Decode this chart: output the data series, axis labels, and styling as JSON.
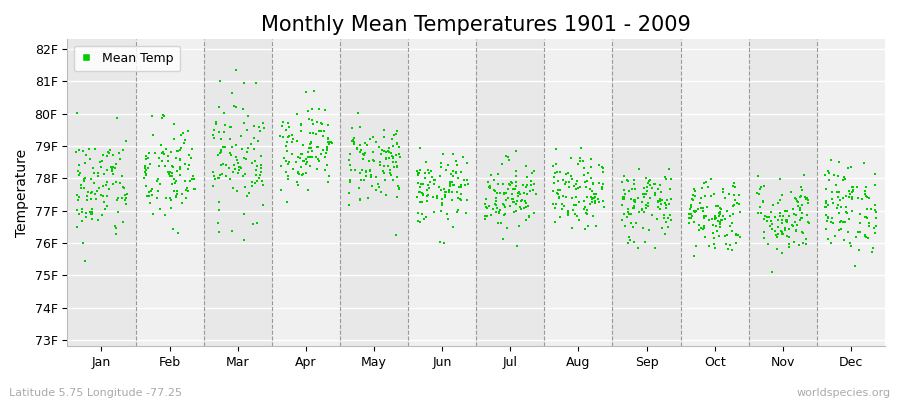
{
  "title": "Monthly Mean Temperatures 1901 - 2009",
  "ylabel": "Temperature",
  "xlabel_labels": [
    "Jan",
    "Feb",
    "Mar",
    "Apr",
    "May",
    "Jun",
    "Jul",
    "Aug",
    "Sep",
    "Oct",
    "Nov",
    "Dec"
  ],
  "ytick_labels": [
    "73F",
    "74F",
    "75F",
    "76F",
    "77F",
    "78F",
    "79F",
    "80F",
    "81F",
    "82F"
  ],
  "ytick_values": [
    73,
    74,
    75,
    76,
    77,
    78,
    79,
    80,
    81,
    82
  ],
  "ylim": [
    72.8,
    82.3
  ],
  "xlim": [
    -0.5,
    11.5
  ],
  "dot_color": "#00cc00",
  "bg_color": "#e8e8e8",
  "stripe_color": "#f0f0f0",
  "fig_color": "#ffffff",
  "grid_color": "#ffffff",
  "dashed_color": "#999999",
  "legend_label": "Mean Temp",
  "footer_left": "Latitude 5.75 Longitude -77.25",
  "footer_right": "worldspecies.org",
  "title_fontsize": 15,
  "axis_label_fontsize": 10,
  "tick_fontsize": 9,
  "footer_fontsize": 8,
  "seed": 42,
  "n_years": 109,
  "monthly_means": [
    77.7,
    78.1,
    78.7,
    79.0,
    78.5,
    77.6,
    77.5,
    77.5,
    77.2,
    76.9,
    76.8,
    77.1
  ],
  "monthly_stds": [
    0.85,
    0.85,
    0.95,
    0.65,
    0.65,
    0.55,
    0.55,
    0.55,
    0.6,
    0.6,
    0.6,
    0.7
  ]
}
